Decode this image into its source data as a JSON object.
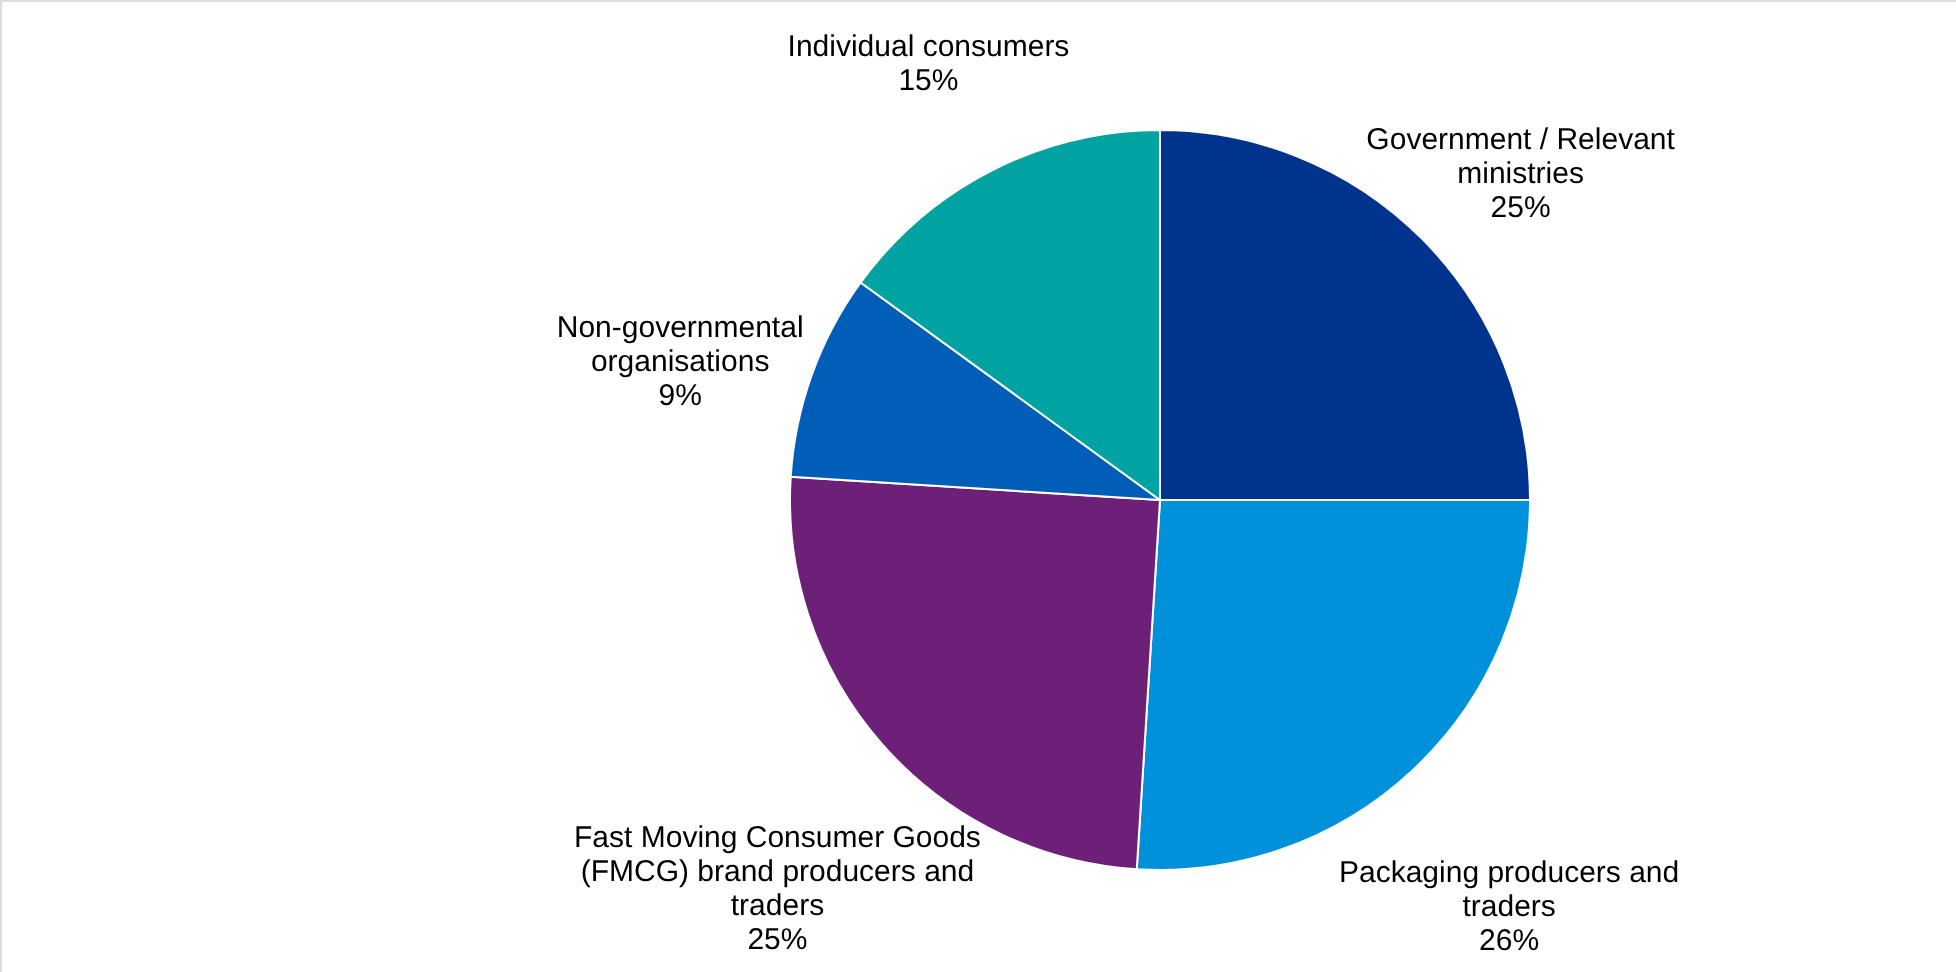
{
  "chart_data": {
    "type": "pie",
    "categories": [
      "Government / Relevant ministries",
      "Packaging producers and traders",
      "Fast Moving Consumer Goods (FMCG) brand producers and traders",
      "Non-governmental organisations",
      "Individual consumers"
    ],
    "values": [
      25,
      26,
      25,
      9,
      15
    ],
    "value_labels": [
      "25%",
      "26%",
      "25%",
      "9%",
      "15%"
    ],
    "colors": [
      "#00338d",
      "#0091da",
      "#6d2077",
      "#005eb8",
      "#00a3a1"
    ]
  }
}
